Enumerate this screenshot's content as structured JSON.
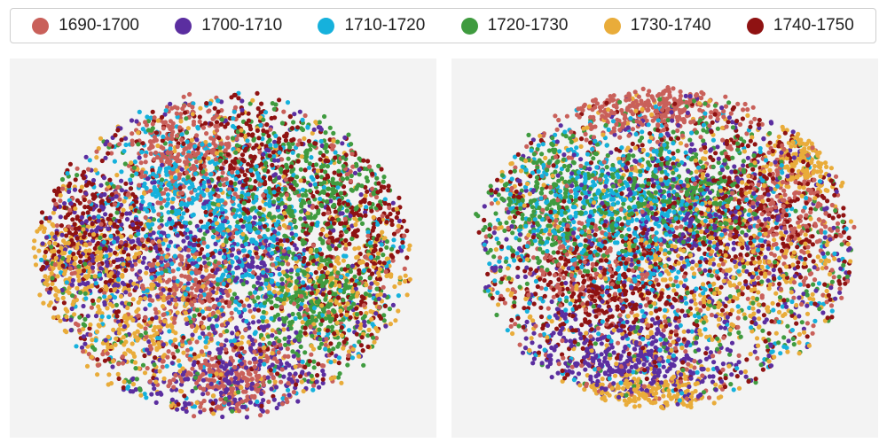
{
  "legend": {
    "items": [
      {
        "label": "1690-1700",
        "color": "#c9605a"
      },
      {
        "label": "1700-1710",
        "color": "#5b2ea0"
      },
      {
        "label": "1710-1720",
        "color": "#16b1dc"
      },
      {
        "label": "1720-1730",
        "color": "#3f9b3f"
      },
      {
        "label": "1730-1740",
        "color": "#e9ac3a"
      },
      {
        "label": "1740-1750",
        "color": "#8f1212"
      }
    ]
  },
  "chart_data": [
    {
      "type": "scatter",
      "title": "",
      "xlabel": "",
      "ylabel": "",
      "axes_visible": false,
      "legend_placement": "top, shared horizontal",
      "series_order": [
        "1690-1700",
        "1700-1710",
        "1710-1720",
        "1720-1730",
        "1730-1740",
        "1740-1750"
      ],
      "series_counts": [
        950,
        950,
        800,
        900,
        900,
        1000
      ],
      "note_shape": "roughly round cloud with left lobe and small islands on top and right",
      "clusters": [
        {
          "series": "1690-1700",
          "x": 0.4,
          "y": 0.25,
          "sx": 0.07,
          "sy": 0.07,
          "w": 0.35
        },
        {
          "series": "1690-1700",
          "x": 0.42,
          "y": 0.6,
          "sx": 0.06,
          "sy": 0.06,
          "w": 0.3
        },
        {
          "series": "1690-1700",
          "x": 0.52,
          "y": 0.85,
          "sx": 0.08,
          "sy": 0.05,
          "w": 0.35
        },
        {
          "series": "1700-1710",
          "x": 0.25,
          "y": 0.5,
          "sx": 0.1,
          "sy": 0.1,
          "w": 0.4
        },
        {
          "series": "1700-1710",
          "x": 0.55,
          "y": 0.85,
          "sx": 0.1,
          "sy": 0.06,
          "w": 0.3
        },
        {
          "series": "1700-1710",
          "x": 0.55,
          "y": 0.55,
          "sx": 0.08,
          "sy": 0.1,
          "w": 0.3
        },
        {
          "series": "1710-1720",
          "x": 0.55,
          "y": 0.45,
          "sx": 0.09,
          "sy": 0.13,
          "w": 0.6
        },
        {
          "series": "1710-1720",
          "x": 0.4,
          "y": 0.35,
          "sx": 0.08,
          "sy": 0.1,
          "w": 0.4
        },
        {
          "series": "1720-1730",
          "x": 0.72,
          "y": 0.65,
          "sx": 0.08,
          "sy": 0.08,
          "w": 0.5
        },
        {
          "series": "1720-1730",
          "x": 0.7,
          "y": 0.35,
          "sx": 0.1,
          "sy": 0.1,
          "w": 0.5
        },
        {
          "series": "1730-1740",
          "x": 0.12,
          "y": 0.52,
          "sx": 0.07,
          "sy": 0.06,
          "w": 0.4
        },
        {
          "series": "1730-1740",
          "x": 0.8,
          "y": 0.6,
          "sx": 0.1,
          "sy": 0.1,
          "w": 0.3
        },
        {
          "series": "1730-1740",
          "x": 0.3,
          "y": 0.7,
          "sx": 0.08,
          "sy": 0.08,
          "w": 0.3
        },
        {
          "series": "1740-1750",
          "x": 0.8,
          "y": 0.45,
          "sx": 0.09,
          "sy": 0.12,
          "w": 0.4
        },
        {
          "series": "1740-1750",
          "x": 0.55,
          "y": 0.25,
          "sx": 0.08,
          "sy": 0.08,
          "w": 0.3
        },
        {
          "series": "1740-1750",
          "x": 0.2,
          "y": 0.45,
          "sx": 0.08,
          "sy": 0.08,
          "w": 0.3
        }
      ],
      "outline": {
        "cx": 0.5,
        "cy": 0.52,
        "rx": 0.44,
        "ry": 0.43
      }
    },
    {
      "type": "scatter",
      "title": "",
      "xlabel": "",
      "ylabel": "",
      "axes_visible": false,
      "legend_placement": "top, shared horizontal",
      "series_order": [
        "1690-1700",
        "1700-1710",
        "1710-1720",
        "1720-1730",
        "1730-1740",
        "1740-1750"
      ],
      "series_counts": [
        900,
        950,
        800,
        900,
        900,
        1000
      ],
      "note_shape": "wide cloud with dense top-left rim and lower lobe",
      "clusters": [
        {
          "series": "1690-1700",
          "x": 0.45,
          "y": 0.12,
          "sx": 0.12,
          "sy": 0.04,
          "w": 0.5
        },
        {
          "series": "1690-1700",
          "x": 0.8,
          "y": 0.4,
          "sx": 0.08,
          "sy": 0.08,
          "w": 0.3
        },
        {
          "series": "1690-1700",
          "x": 0.3,
          "y": 0.55,
          "sx": 0.08,
          "sy": 0.06,
          "w": 0.2
        },
        {
          "series": "1700-1710",
          "x": 0.4,
          "y": 0.8,
          "sx": 0.12,
          "sy": 0.07,
          "w": 0.6
        },
        {
          "series": "1700-1710",
          "x": 0.55,
          "y": 0.4,
          "sx": 0.12,
          "sy": 0.1,
          "w": 0.4
        },
        {
          "series": "1710-1720",
          "x": 0.45,
          "y": 0.45,
          "sx": 0.12,
          "sy": 0.1,
          "w": 0.6
        },
        {
          "series": "1710-1720",
          "x": 0.3,
          "y": 0.35,
          "sx": 0.1,
          "sy": 0.1,
          "w": 0.4
        },
        {
          "series": "1720-1730",
          "x": 0.25,
          "y": 0.38,
          "sx": 0.1,
          "sy": 0.1,
          "w": 0.5
        },
        {
          "series": "1720-1730",
          "x": 0.55,
          "y": 0.35,
          "sx": 0.1,
          "sy": 0.08,
          "w": 0.5
        },
        {
          "series": "1730-1740",
          "x": 0.65,
          "y": 0.55,
          "sx": 0.12,
          "sy": 0.12,
          "w": 0.4
        },
        {
          "series": "1730-1740",
          "x": 0.45,
          "y": 0.9,
          "sx": 0.08,
          "sy": 0.04,
          "w": 0.3
        },
        {
          "series": "1730-1740",
          "x": 0.85,
          "y": 0.25,
          "sx": 0.05,
          "sy": 0.05,
          "w": 0.3
        },
        {
          "series": "1740-1750",
          "x": 0.7,
          "y": 0.4,
          "sx": 0.12,
          "sy": 0.12,
          "w": 0.5
        },
        {
          "series": "1740-1750",
          "x": 0.35,
          "y": 0.6,
          "sx": 0.1,
          "sy": 0.08,
          "w": 0.5
        }
      ],
      "outline": {
        "cx": 0.5,
        "cy": 0.5,
        "rx": 0.45,
        "ry": 0.42
      }
    }
  ]
}
